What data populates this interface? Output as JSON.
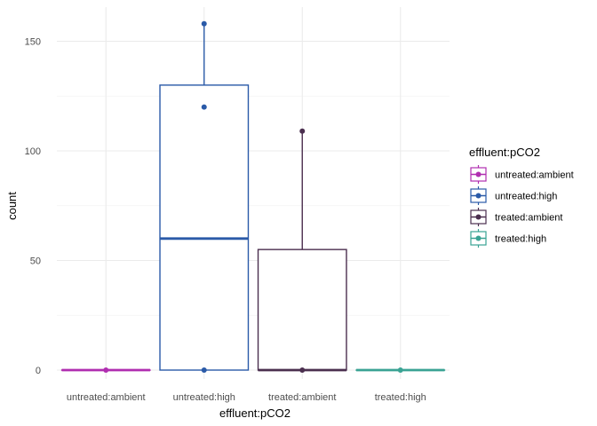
{
  "chart_data": {
    "type": "boxplot",
    "xlabel": "effluent:pCO2",
    "ylabel": "count",
    "ylim": [
      -8,
      158
    ],
    "y_ticks": [
      0,
      50,
      100,
      150
    ],
    "y_tick_labels": [
      "0",
      "50",
      "100",
      "150"
    ],
    "grid": true,
    "legend_title": "effluent:pCO2",
    "legend_position": "right",
    "categories": [
      "untreated:ambient",
      "untreated:high",
      "treated:ambient",
      "treated:high"
    ],
    "series": [
      {
        "name": "untreated:ambient",
        "color": "#b02eb0",
        "q1": 0,
        "median": 0,
        "q3": 0,
        "whisker_low": 0,
        "whisker_high": 0,
        "points": [
          0
        ]
      },
      {
        "name": "untreated:high",
        "color": "#2a5aa8",
        "q1": 0,
        "median": 60,
        "q3": 130,
        "whisker_low": 0,
        "whisker_high": 158,
        "points": [
          158,
          120,
          0
        ]
      },
      {
        "name": "treated:ambient",
        "color": "#4b2f4f",
        "q1": 0,
        "median": 0,
        "q3": 55,
        "whisker_low": 0,
        "whisker_high": 109,
        "points": [
          109,
          0
        ]
      },
      {
        "name": "treated:high",
        "color": "#3aa394",
        "q1": 0,
        "median": 0,
        "q3": 0,
        "whisker_low": 0,
        "whisker_high": 0,
        "points": [
          0
        ]
      }
    ]
  }
}
